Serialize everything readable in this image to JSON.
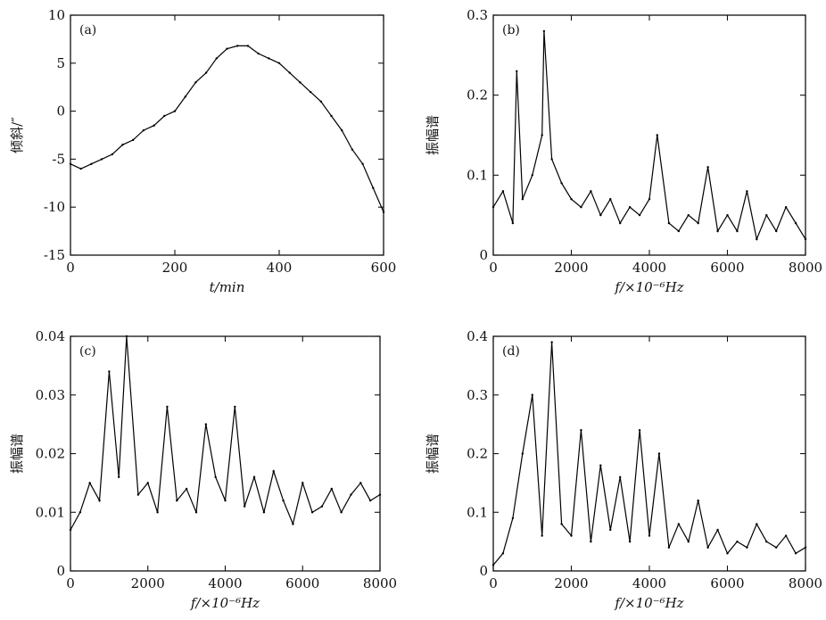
{
  "chart_data": [
    {
      "id": "a",
      "type": "line",
      "panel_label": "(a)",
      "title": "",
      "xlabel": "t/min",
      "ylabel": "倾斜/″",
      "xlim": [
        0,
        600
      ],
      "ylim": [
        -15,
        10
      ],
      "xticks": [
        0,
        200,
        400,
        600
      ],
      "yticks": [
        -15,
        -10,
        -5,
        0,
        5,
        10
      ],
      "grid": false,
      "series": [
        {
          "x": [
            0,
            20,
            40,
            60,
            80,
            100,
            120,
            140,
            160,
            180,
            200,
            220,
            240,
            260,
            280,
            300,
            320,
            340,
            360,
            380,
            400,
            420,
            440,
            460,
            480,
            500,
            520,
            540,
            560,
            580,
            600
          ],
          "y": [
            -5.5,
            -6.0,
            -5.5,
            -5.0,
            -4.5,
            -3.5,
            -3.0,
            -2.0,
            -1.5,
            -0.5,
            0.0,
            1.5,
            3.0,
            4.0,
            5.5,
            6.5,
            6.8,
            6.8,
            6.0,
            5.5,
            5.0,
            4.0,
            3.0,
            2.0,
            1.0,
            -0.5,
            -2.0,
            -4.0,
            -5.5,
            -8.0,
            -10.5
          ]
        }
      ]
    },
    {
      "id": "b",
      "type": "line",
      "panel_label": "(b)",
      "title": "",
      "xlabel": "f/×10⁻⁶Hz",
      "ylabel": "振幅谱",
      "xlim": [
        0,
        8000
      ],
      "ylim": [
        0,
        0.3
      ],
      "xticks": [
        0,
        2000,
        4000,
        6000,
        8000
      ],
      "yticks": [
        0,
        0.1,
        0.2,
        0.3
      ],
      "grid": false,
      "series": [
        {
          "x": [
            0,
            250,
            500,
            600,
            750,
            1000,
            1250,
            1300,
            1500,
            1750,
            2000,
            2250,
            2500,
            2750,
            3000,
            3250,
            3500,
            3750,
            4000,
            4200,
            4500,
            4750,
            5000,
            5250,
            5500,
            5750,
            6000,
            6250,
            6500,
            6750,
            7000,
            7250,
            7500,
            7750,
            8000
          ],
          "y": [
            0.06,
            0.08,
            0.04,
            0.23,
            0.07,
            0.1,
            0.15,
            0.28,
            0.12,
            0.09,
            0.07,
            0.06,
            0.08,
            0.05,
            0.07,
            0.04,
            0.06,
            0.05,
            0.07,
            0.15,
            0.04,
            0.03,
            0.05,
            0.04,
            0.11,
            0.03,
            0.05,
            0.03,
            0.08,
            0.02,
            0.05,
            0.03,
            0.06,
            0.04,
            0.02
          ]
        }
      ]
    },
    {
      "id": "c",
      "type": "line",
      "panel_label": "(c)",
      "title": "",
      "xlabel": "f/×10⁻⁶Hz",
      "ylabel": "振幅谱",
      "xlim": [
        0,
        8000
      ],
      "ylim": [
        0,
        0.04
      ],
      "xticks": [
        0,
        2000,
        4000,
        6000,
        8000
      ],
      "yticks": [
        0,
        0.01,
        0.02,
        0.03,
        0.04
      ],
      "grid": false,
      "series": [
        {
          "x": [
            0,
            250,
            500,
            750,
            1000,
            1250,
            1450,
            1750,
            2000,
            2250,
            2500,
            2750,
            3000,
            3250,
            3500,
            3750,
            4000,
            4250,
            4500,
            4750,
            5000,
            5250,
            5500,
            5750,
            6000,
            6250,
            6500,
            6750,
            7000,
            7250,
            7500,
            7750,
            8000
          ],
          "y": [
            0.007,
            0.01,
            0.015,
            0.012,
            0.034,
            0.016,
            0.04,
            0.013,
            0.015,
            0.01,
            0.028,
            0.012,
            0.014,
            0.01,
            0.025,
            0.016,
            0.012,
            0.028,
            0.011,
            0.016,
            0.01,
            0.017,
            0.012,
            0.008,
            0.015,
            0.01,
            0.011,
            0.014,
            0.01,
            0.013,
            0.015,
            0.012,
            0.013
          ]
        }
      ]
    },
    {
      "id": "d",
      "type": "line",
      "panel_label": "(d)",
      "title": "",
      "xlabel": "f/×10⁻⁶Hz",
      "ylabel": "振幅谱",
      "xlim": [
        0,
        8000
      ],
      "ylim": [
        0,
        0.4
      ],
      "xticks": [
        0,
        2000,
        4000,
        6000,
        8000
      ],
      "yticks": [
        0,
        0.1,
        0.2,
        0.3,
        0.4
      ],
      "grid": false,
      "series": [
        {
          "x": [
            0,
            250,
            500,
            750,
            1000,
            1250,
            1500,
            1750,
            2000,
            2250,
            2500,
            2750,
            3000,
            3250,
            3500,
            3750,
            4000,
            4250,
            4500,
            4750,
            5000,
            5250,
            5500,
            5750,
            6000,
            6250,
            6500,
            6750,
            7000,
            7250,
            7500,
            7750,
            8000
          ],
          "y": [
            0.01,
            0.03,
            0.09,
            0.2,
            0.3,
            0.06,
            0.39,
            0.08,
            0.06,
            0.24,
            0.05,
            0.18,
            0.07,
            0.16,
            0.05,
            0.24,
            0.06,
            0.2,
            0.04,
            0.08,
            0.05,
            0.12,
            0.04,
            0.07,
            0.03,
            0.05,
            0.04,
            0.08,
            0.05,
            0.04,
            0.06,
            0.03,
            0.04
          ]
        }
      ]
    }
  ]
}
